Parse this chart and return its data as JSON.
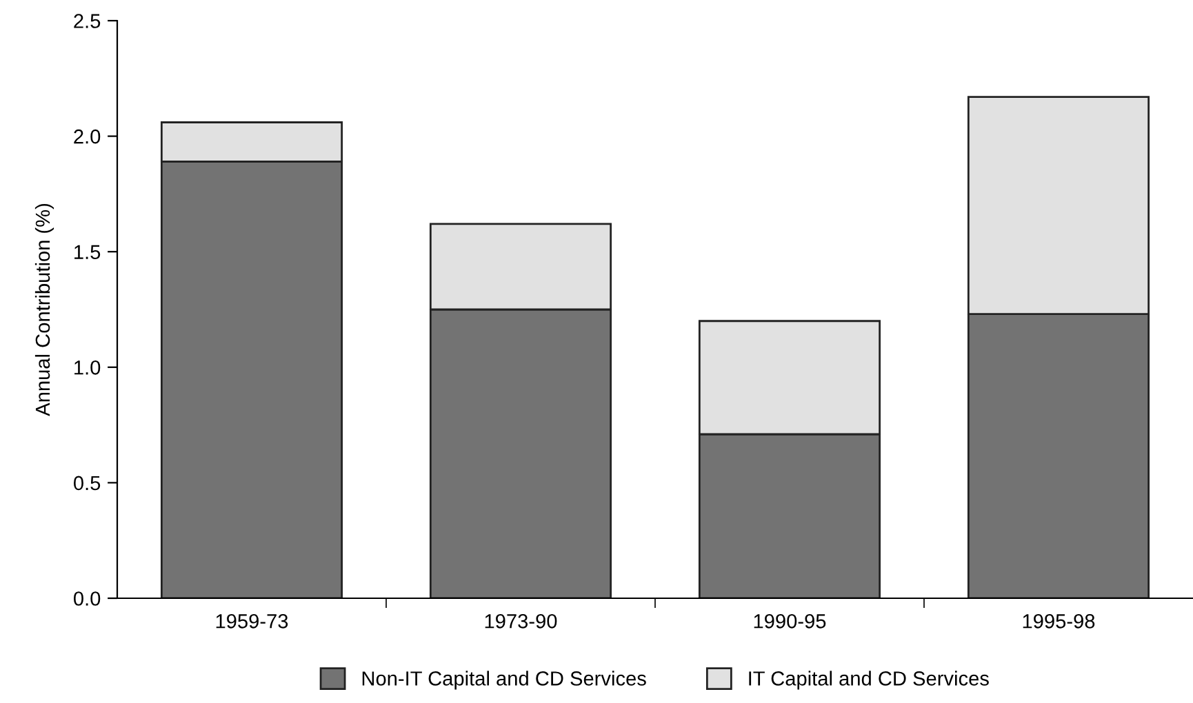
{
  "chart_data": {
    "type": "bar",
    "stacked": true,
    "ylabel": "Annual Contribution (%)",
    "categories": [
      "1959-73",
      "1973-90",
      "1990-95",
      "1995-98"
    ],
    "series": [
      {
        "name": "Non-IT Capital and CD Services",
        "color": "#737373",
        "values": [
          1.89,
          1.25,
          0.71,
          1.23
        ]
      },
      {
        "name": "IT Capital and CD Services",
        "color": "#e1e1e1",
        "values": [
          0.17,
          0.37,
          0.49,
          0.94
        ]
      }
    ],
    "ylim": [
      0,
      2.5
    ],
    "yticks": [
      {
        "value": 0,
        "label": "0.0"
      },
      {
        "value": 0.5,
        "label": "0.5"
      },
      {
        "value": 1,
        "label": "1.0"
      },
      {
        "value": 1.5,
        "label": "1.5"
      },
      {
        "value": 2,
        "label": "2.0"
      },
      {
        "value": 2.5,
        "label": "2.5"
      }
    ],
    "grid": false,
    "legend": "bottom"
  }
}
